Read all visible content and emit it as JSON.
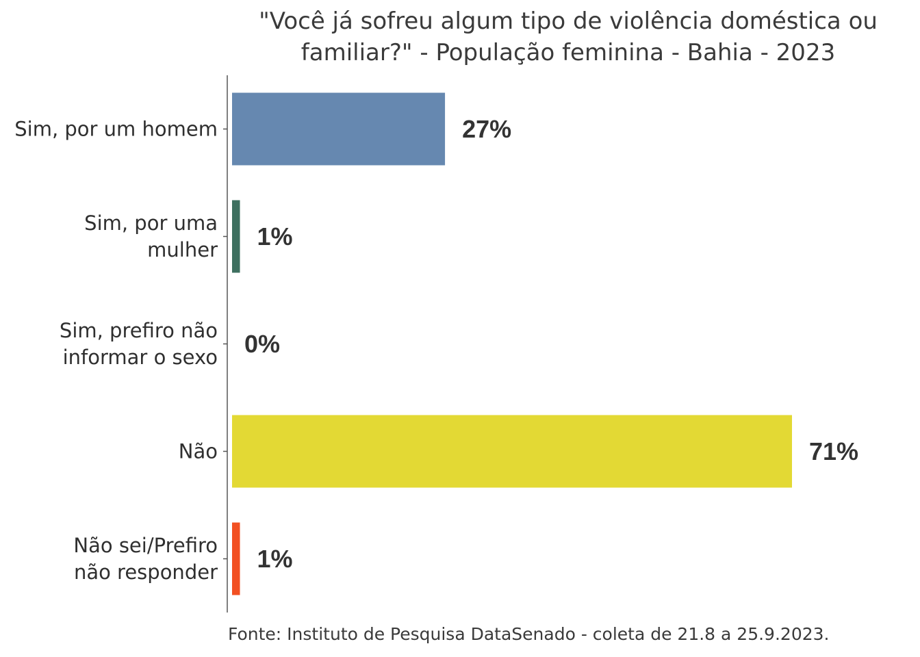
{
  "chart_data": {
    "type": "bar",
    "orientation": "horizontal",
    "title_lines": [
      "\"Você já sofreu algum tipo de violência doméstica ou",
      "familiar?\" - População feminina - Bahia - 2023"
    ],
    "categories": [
      [
        "Sim, por um homem"
      ],
      [
        "Sim, por uma",
        "mulher"
      ],
      [
        "Sim, prefiro não",
        "informar o sexo"
      ],
      [
        "Não"
      ],
      [
        "Não sei/Prefiro",
        "não responder"
      ]
    ],
    "values": [
      27,
      1,
      0,
      71,
      1
    ],
    "value_labels": [
      "27%",
      "1%",
      "0%",
      "71%",
      "1%"
    ],
    "colors": [
      "#6688b0",
      "#3e7060",
      "#999999",
      "#e3d934",
      "#f25022"
    ],
    "xlim": [
      0,
      100
    ],
    "grid": false,
    "legend": "none",
    "source": "Fonte: Instituto de Pesquisa DataSenado - coleta de 21.8 a 25.9.2023."
  }
}
